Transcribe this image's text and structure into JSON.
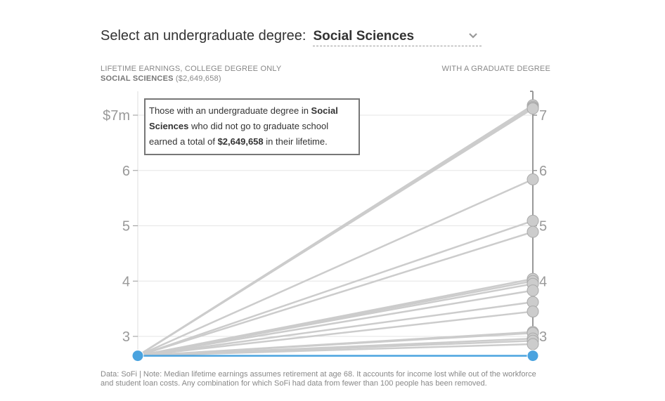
{
  "selector": {
    "prompt": "Select an undergraduate degree:",
    "selected": "Social Sciences",
    "icon": "chevron-down-icon"
  },
  "header_left": {
    "title": "LIFETIME EARNINGS, COLLEGE DEGREE ONLY",
    "degree": "SOCIAL SCIENCES",
    "amount": "($2,649,658)"
  },
  "header_right": {
    "title": "WITH A GRADUATE DEGREE"
  },
  "tooltip": {
    "part1": "Those with an undergraduate degree in ",
    "degree": "Social Sciences",
    "part2": " who did not go to graduate school earned a total of ",
    "amount": "$2,649,658",
    "part3": " in their lifetime."
  },
  "footnote": "Data: SoFi | Note: Median lifetime earnings assumes retirement at age 68. It accounts for income lost while out of the workforce and student loan costs. Any combination for which SoFi had data from fewer than 100 people has been removed.",
  "colors": {
    "highlight": "#4aa3df",
    "line": "#cccccc",
    "dot": "#cccccc",
    "grid": "#e5e5e5",
    "axis": "#999999"
  },
  "chart_data": {
    "type": "line",
    "title": "",
    "xlabel": "",
    "ylabel": "",
    "ylim": [
      2.6,
      7.2
    ],
    "left_ticks": [
      "$7m",
      "6",
      "5",
      "4",
      "3"
    ],
    "right_ticks": [
      "7",
      "6",
      "5",
      "4",
      "3"
    ],
    "tick_values": [
      7,
      6,
      5,
      4,
      3
    ],
    "start_value": 2.65,
    "highlight_end": 2.65,
    "grad_values": [
      7.18,
      7.15,
      7.13,
      7.12,
      5.84,
      5.09,
      4.89,
      4.04,
      4.0,
      3.95,
      3.83,
      3.62,
      3.45,
      3.08,
      3.06,
      2.96,
      2.92,
      2.86
    ]
  }
}
